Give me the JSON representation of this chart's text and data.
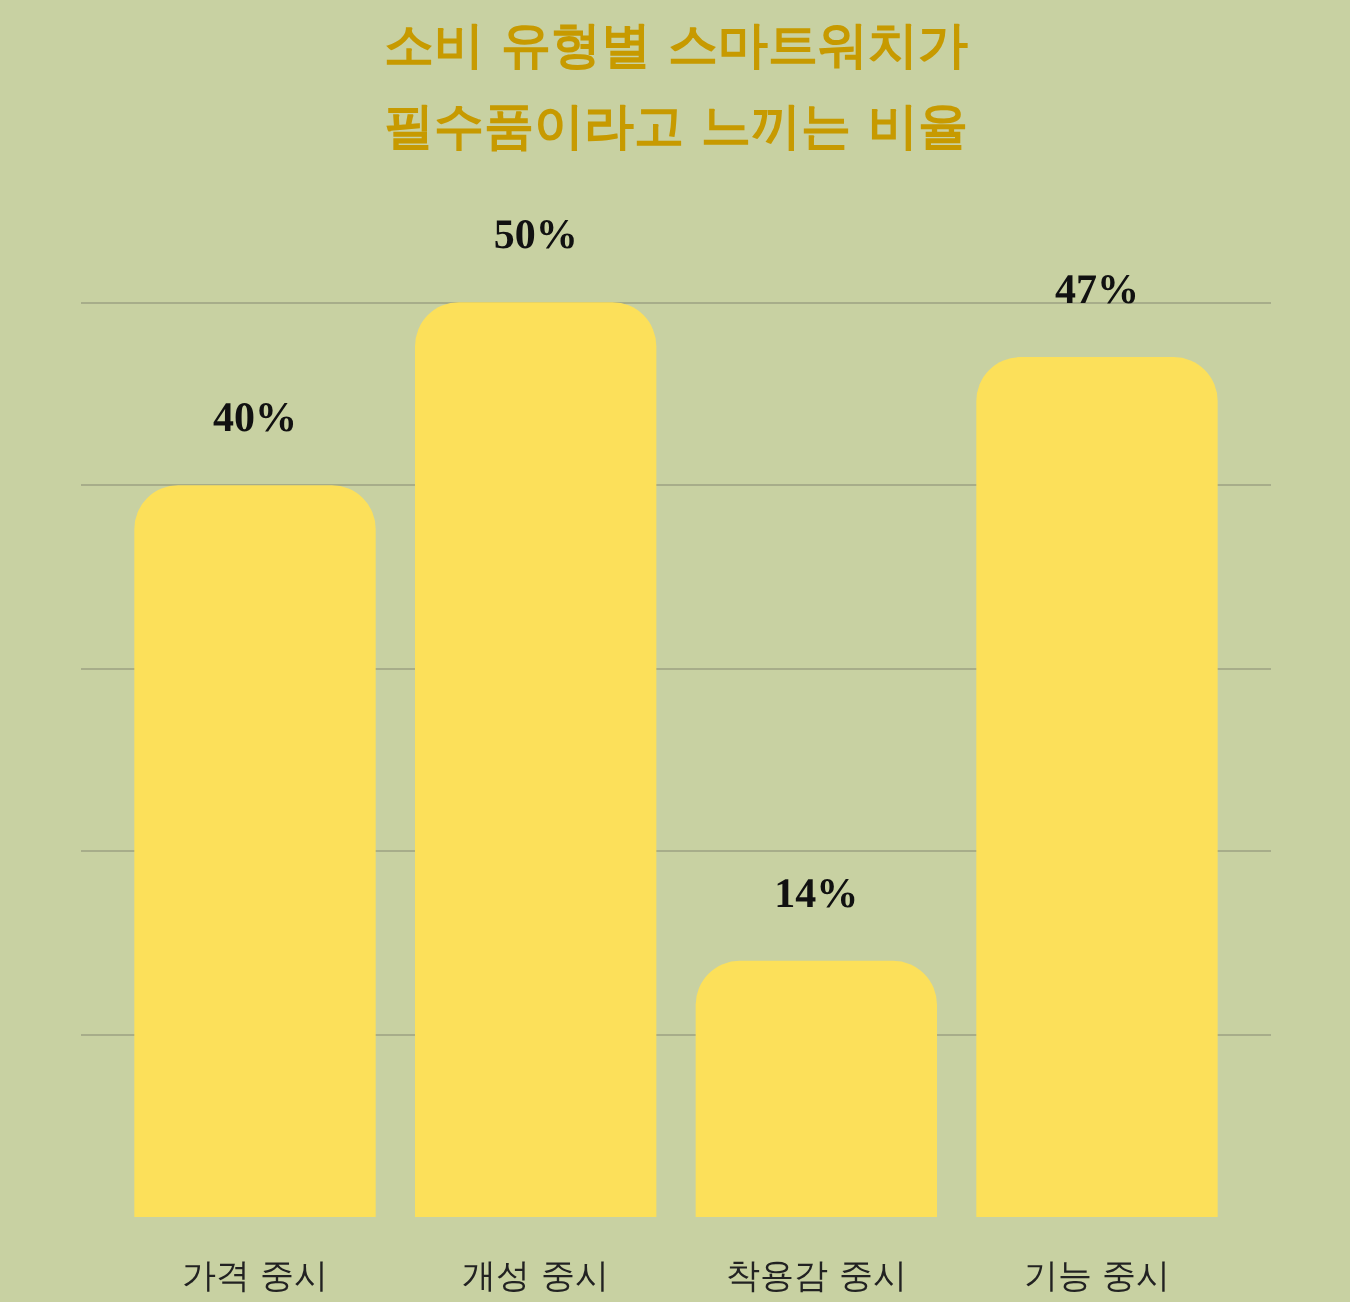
{
  "chart_data": {
    "type": "bar",
    "title": "소비 유형별 스마트워치가\n필수품이라고 느끼는 비율",
    "categories": [
      "가격 중시",
      "개성 중시",
      "착용감 중시",
      "기능 중시"
    ],
    "values": [
      40,
      50,
      14,
      47
    ],
    "color": "#fce05a",
    "data_labels": true,
    "value_labels": [
      "40%",
      "50%",
      "14%",
      "47%"
    ],
    "tick_labels": "x",
    "grid": "y"
  }
}
